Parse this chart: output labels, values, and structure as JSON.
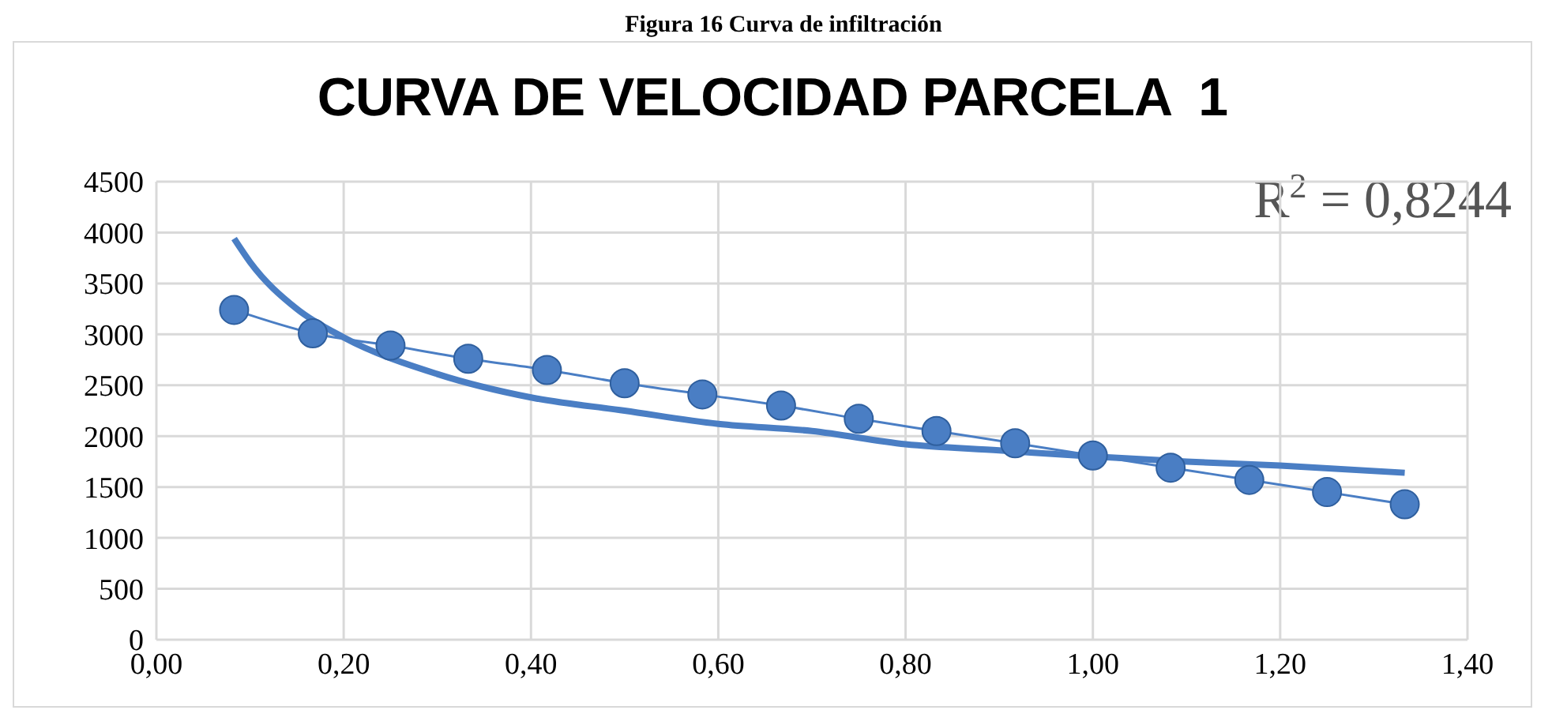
{
  "chart_data": {
    "type": "line",
    "title": "CURVA DE VELOCIDAD PARCELA  1",
    "x": [
      0.083,
      0.167,
      0.25,
      0.333,
      0.417,
      0.5,
      0.583,
      0.667,
      0.75,
      0.833,
      0.917,
      1.0,
      1.083,
      1.167,
      1.25,
      1.333
    ],
    "series": [
      {
        "color": "#4a7ec4",
        "marker": "circle",
        "values": [
          3240,
          3010,
          2890,
          2760,
          2650,
          2520,
          2410,
          2300,
          2170,
          2050,
          1930,
          1810,
          1690,
          1570,
          1450,
          1330
        ]
      },
      {
        "color": "#4a7ec4",
        "marker": "none",
        "x": [
          0.083,
          0.1,
          0.15,
          0.2,
          0.3,
          0.4,
          0.5,
          0.6,
          0.7,
          0.8,
          0.9,
          1.0,
          1.1,
          1.2,
          1.333
        ],
        "values": [
          3940,
          3710,
          3250,
          2970,
          2610,
          2380,
          2250,
          2120,
          2050,
          1920,
          1860,
          1800,
          1750,
          1710,
          1640
        ]
      }
    ],
    "xlim": [
      0,
      1.4
    ],
    "xticks": [
      {
        "value": 0,
        "label": "0,00"
      },
      {
        "value": 0.2,
        "label": "0,20"
      },
      {
        "value": 0.4,
        "label": "0,40"
      },
      {
        "value": 0.6,
        "label": "0,60"
      },
      {
        "value": 0.8,
        "label": "0,80"
      },
      {
        "value": 1.0,
        "label": "1,00"
      },
      {
        "value": 1.2,
        "label": "1,20"
      },
      {
        "value": 1.4,
        "label": "1,40"
      }
    ],
    "ylim": [
      0,
      4500
    ],
    "yticks": [
      0,
      500,
      1000,
      1500,
      2000,
      2500,
      3000,
      3500,
      4000,
      4500
    ],
    "grid": true,
    "annotations": [
      "Figura 16 Curva de infiltración",
      {
        "text": "R$^{2}$ = 0,8244"
      }
    ]
  }
}
